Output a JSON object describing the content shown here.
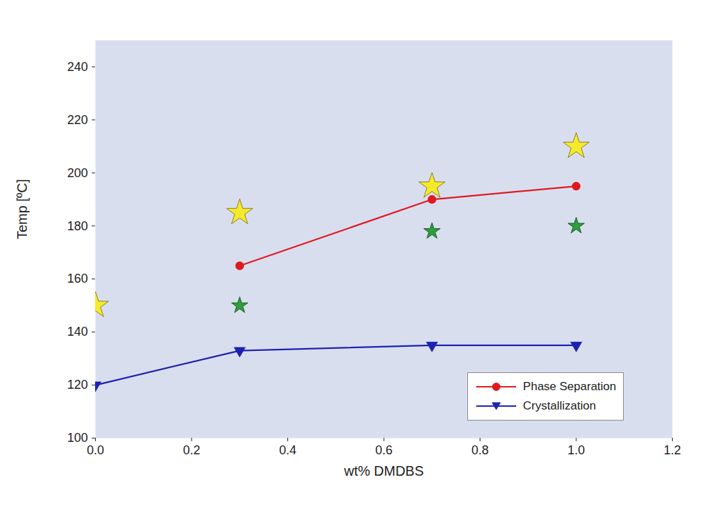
{
  "chart_data": {
    "type": "line",
    "xlabel": "wt% DMDBS",
    "ylabel": "Temp [ºC]",
    "xlim": [
      0,
      1.2
    ],
    "xticks": [
      {
        "value": 0,
        "label": "0.0"
      },
      {
        "value": 0.2,
        "label": "0.2"
      },
      {
        "value": 0.4,
        "label": "0.4"
      },
      {
        "value": 0.6,
        "label": "0.6"
      },
      {
        "value": 0.8,
        "label": "0.8"
      },
      {
        "value": 1.0,
        "label": "1.0"
      },
      {
        "value": 1.2,
        "label": "1.2"
      }
    ],
    "ylim": [
      100,
      250
    ],
    "yticks": [
      100,
      120,
      140,
      160,
      180,
      200,
      220,
      240
    ],
    "grid": false,
    "legend": "lower right",
    "series": [
      {
        "name": "Phase Separation",
        "type": "line",
        "color": "#e0191f",
        "marker": "circle",
        "line_style": "solid",
        "x": [
          0.3,
          0.7,
          1.0
        ],
        "values": [
          165,
          190,
          195
        ]
      },
      {
        "name": "Crystallization",
        "type": "line",
        "color": "#1c22b0",
        "marker": "triangle-down",
        "line_style": "solid",
        "x": [
          0,
          0.3,
          0.7,
          1.0
        ],
        "values": [
          120,
          133,
          135,
          135
        ]
      },
      {
        "type": "scatter",
        "color": "#f4ea2a",
        "marker": "star",
        "x": [
          0,
          0.3,
          0.7,
          1.0
        ],
        "values": [
          150,
          185,
          195,
          210
        ]
      },
      {
        "type": "scatter",
        "color": "#2e9e3e",
        "marker": "star",
        "x": [
          0.3,
          0.7,
          1.0
        ],
        "values": [
          150,
          178,
          180
        ]
      }
    ]
  }
}
